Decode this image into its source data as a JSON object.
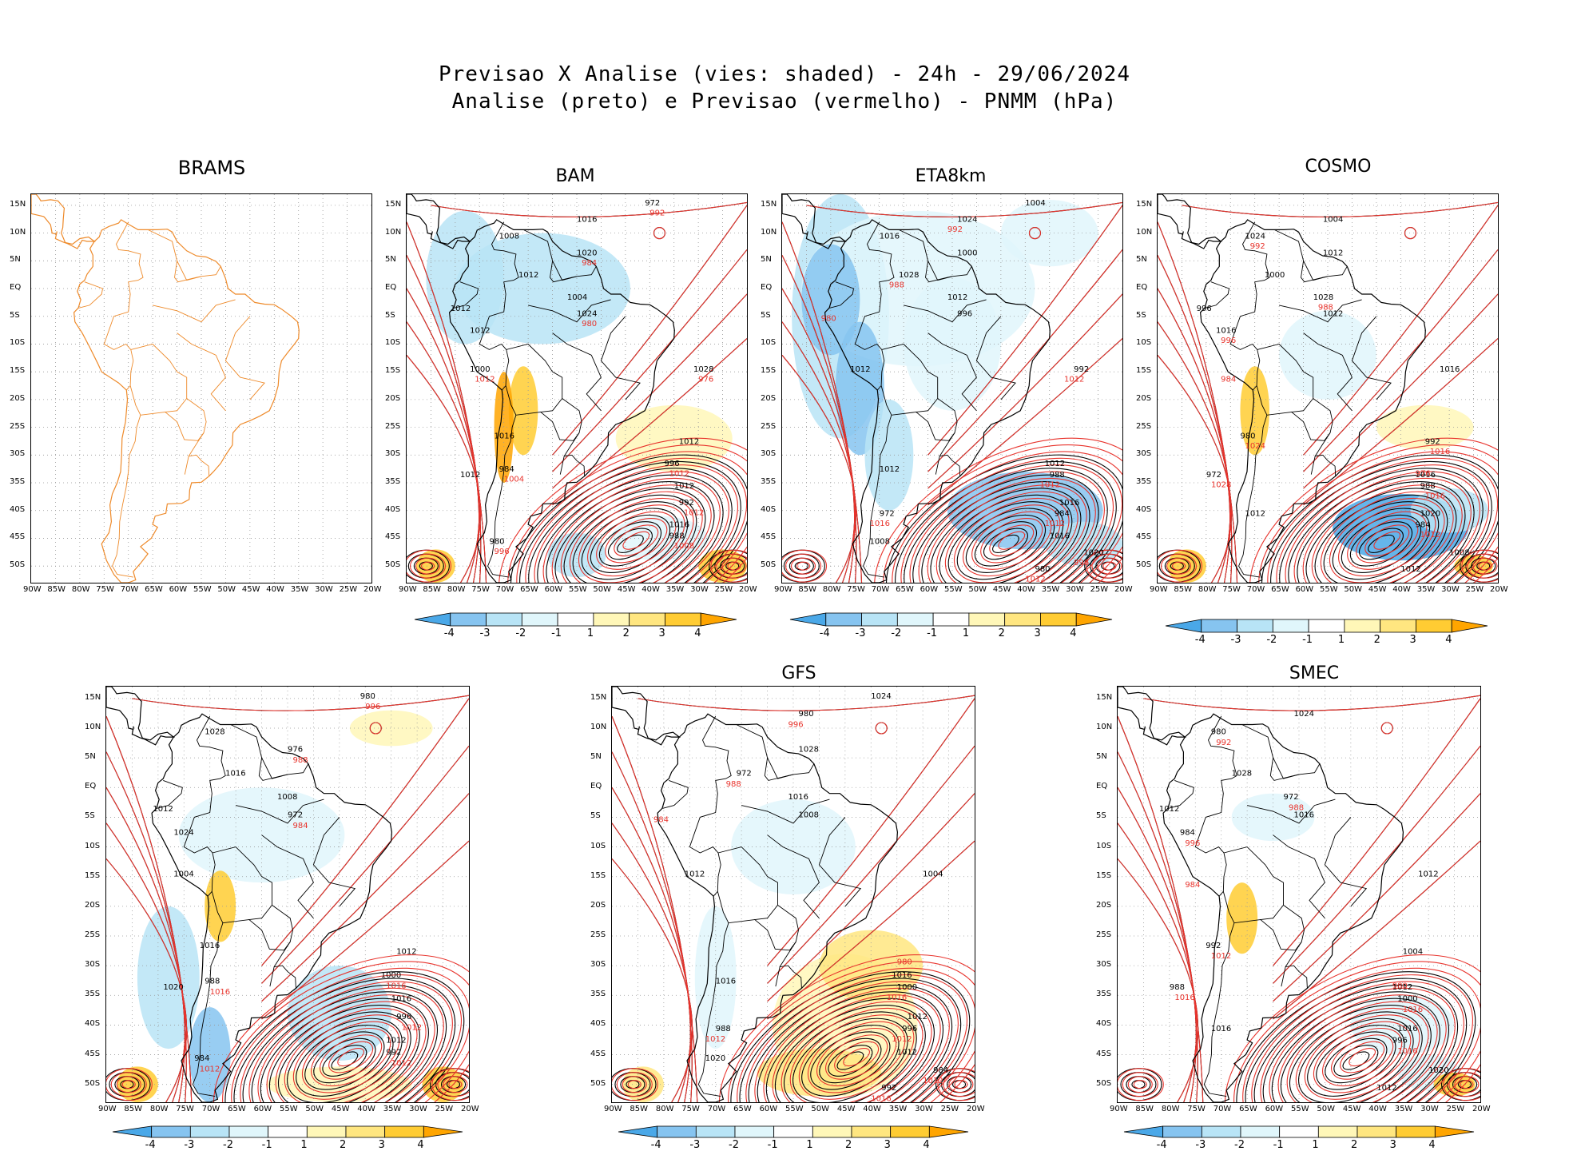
{
  "header": {
    "line1": "Previsao X Analise (vies: shaded) - 24h - 29/06/2024",
    "line2": "Analise (preto) e Previsao (vermelho) - PNMM (hPa)"
  },
  "axes": {
    "lat_ticks": [
      "15N",
      "10N",
      "5N",
      "EQ",
      "5S",
      "10S",
      "15S",
      "20S",
      "25S",
      "30S",
      "35S",
      "40S",
      "45S",
      "50S"
    ],
    "lon_ticks": [
      "90W",
      "85W",
      "80W",
      "75W",
      "70W",
      "65W",
      "60W",
      "55W",
      "50W",
      "45W",
      "40W",
      "35W",
      "30W",
      "25W",
      "20W"
    ],
    "extent": {
      "lon_min": -90,
      "lon_max": -20,
      "lat_min": -53,
      "lat_max": 17
    }
  },
  "colorbar": {
    "labels": [
      "-4",
      "-3",
      "-2",
      "-1",
      "1",
      "2",
      "3",
      "4"
    ],
    "colors": [
      "#4aa8e8",
      "#86c4f0",
      "#b8e4f6",
      "#e0f6fb",
      "#ffffff",
      "#fff7b8",
      "#ffe680",
      "#ffcc33",
      "#ffa500"
    ]
  },
  "colors": {
    "analysis": "#000000",
    "forecast": "#e8332c",
    "coast_brams": "#ee8a2a"
  },
  "panels": [
    {
      "id": "brams",
      "title": "BRAMS",
      "has_colorbar": false,
      "labels_black": [],
      "labels_red": []
    },
    {
      "id": "bam",
      "title": "BAM",
      "has_colorbar": true,
      "labels_black": [
        "1016",
        "1012",
        "1012",
        "1012",
        "1012",
        "1016",
        "1016",
        "1012",
        "1012",
        "1008",
        "1004",
        "1000",
        "996",
        "992",
        "988",
        "984",
        "980",
        "972",
        "1020",
        "1024",
        "1028"
      ],
      "labels_red": [
        "1012",
        "1012",
        "1012",
        "1008",
        "1004",
        "996",
        "992",
        "984",
        "980",
        "976"
      ]
    },
    {
      "id": "eta8km",
      "title": "ETA8km",
      "has_colorbar": true,
      "labels_black": [
        "1016",
        "1012",
        "1012",
        "1012",
        "1016",
        "1016",
        "1012",
        "1008",
        "1004",
        "1000",
        "996",
        "992",
        "988",
        "984",
        "980",
        "972",
        "1020",
        "1024",
        "1028"
      ],
      "labels_red": [
        "1012",
        "1012",
        "1012",
        "1012",
        "1016",
        "996",
        "992",
        "988",
        "980"
      ]
    },
    {
      "id": "cosmo",
      "title": "COSMO",
      "has_colorbar": true,
      "labels_black": [
        "1012",
        "1012",
        "1016",
        "1016",
        "1020",
        "1012",
        "1012",
        "1008",
        "1004",
        "1000",
        "996",
        "992",
        "988",
        "984",
        "980",
        "972",
        "1016",
        "1024",
        "1028"
      ],
      "labels_red": [
        "1016",
        "1016",
        "1012",
        "1024",
        "1028",
        "996",
        "992",
        "988",
        "984",
        "976"
      ]
    },
    {
      "id": "panel5",
      "title": "",
      "has_colorbar": true,
      "labels_black": [
        "1016",
        "1012",
        "1012",
        "1016",
        "1012",
        "1016",
        "1020",
        "1024",
        "1028",
        "1008",
        "1004",
        "1000",
        "996",
        "992",
        "988",
        "984",
        "980",
        "976",
        "972"
      ],
      "labels_red": [
        "1016",
        "1012",
        "1012",
        "1016",
        "1012",
        "996",
        "988",
        "984"
      ]
    },
    {
      "id": "gfs",
      "title": "GFS",
      "has_colorbar": true,
      "labels_black": [
        "1016",
        "1012",
        "1016",
        "1012",
        "1012",
        "1016",
        "1020",
        "1024",
        "1028",
        "1008",
        "1004",
        "1000",
        "996",
        "992",
        "988",
        "984",
        "980",
        "972"
      ],
      "labels_red": [
        "1016",
        "1012",
        "1016",
        "1012",
        "1012",
        "996",
        "988",
        "984",
        "980"
      ]
    },
    {
      "id": "smec",
      "title": "SMEC",
      "has_colorbar": true,
      "labels_black": [
        "1016",
        "1012",
        "1012",
        "1016",
        "1012",
        "1016",
        "1020",
        "1024",
        "1028",
        "1012",
        "1004",
        "1000",
        "996",
        "992",
        "988",
        "984",
        "980",
        "972"
      ],
      "labels_red": [
        "1016",
        "1016",
        "1012",
        "1016",
        "996",
        "992",
        "988",
        "984",
        "980"
      ]
    }
  ]
}
